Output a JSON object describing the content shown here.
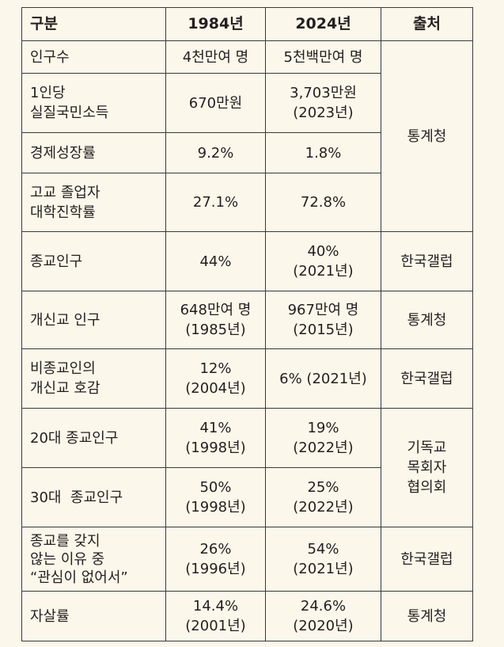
{
  "header": {
    "col1": "구분",
    "col2": "1984년",
    "col3": "2024년",
    "col4": "출처"
  },
  "rows": [
    {
      "label": [
        "인구수"
      ],
      "v1984": [
        "4천만여 명"
      ],
      "v2024": [
        "5천백만여 명"
      ]
    },
    {
      "label": [
        "1인당",
        "실질국민소득"
      ],
      "v1984": [
        "670만원"
      ],
      "v2024": [
        "3,703만원",
        "(2023년)"
      ]
    },
    {
      "label": [
        "경제성장률"
      ],
      "v1984": [
        "9.2%"
      ],
      "v2024": [
        "1.8%"
      ]
    },
    {
      "label": [
        "고교 졸업자",
        "대학진학률"
      ],
      "v1984": [
        "27.1%"
      ],
      "v2024": [
        "72.8%"
      ]
    },
    {
      "label": [
        "종교인구"
      ],
      "v1984": [
        "44%"
      ],
      "v2024": [
        "40%",
        "(2021년)"
      ]
    },
    {
      "label": [
        "개신교 인구"
      ],
      "v1984": [
        "648만여 명",
        "(1985년)"
      ],
      "v2024": [
        "967만여 명",
        "(2015년)"
      ]
    },
    {
      "label": [
        "비종교인의",
        "개신교 호감"
      ],
      "v1984": [
        "12%",
        "(2004년)"
      ],
      "v2024": [
        "6% (2021년)"
      ]
    },
    {
      "label": [
        "20대 종교인구"
      ],
      "v1984": [
        "41%",
        "(1998년)"
      ],
      "v2024": [
        "19%",
        "(2022년)"
      ]
    },
    {
      "label": [
        "30대  종교인구"
      ],
      "v1984": [
        "50%",
        "(1998년)"
      ],
      "v2024": [
        "25%",
        "(2022년)"
      ]
    },
    {
      "label": [
        "종교를 갖지",
        "않는 이유 중",
        "“관심이 없어서”"
      ],
      "v1984": [
        "26%",
        "(1996년)"
      ],
      "v2024": [
        "54%",
        "(2021년)"
      ]
    },
    {
      "label": [
        "자살률"
      ],
      "v1984": [
        "14.4%",
        "(2001년)"
      ],
      "v2024": [
        "24.6%",
        "(2020년)"
      ]
    }
  ],
  "sources": [
    {
      "lines": [
        "통계청"
      ]
    },
    {
      "lines": [
        "한국갤럽"
      ]
    },
    {
      "lines": [
        "통계청"
      ]
    },
    {
      "lines": [
        "한국갤럽"
      ]
    },
    {
      "lines": [
        "기독교",
        "목회자",
        "협의회"
      ]
    },
    {
      "lines": [
        "한국갤럽"
      ]
    },
    {
      "lines": [
        "통계청"
      ]
    }
  ]
}
